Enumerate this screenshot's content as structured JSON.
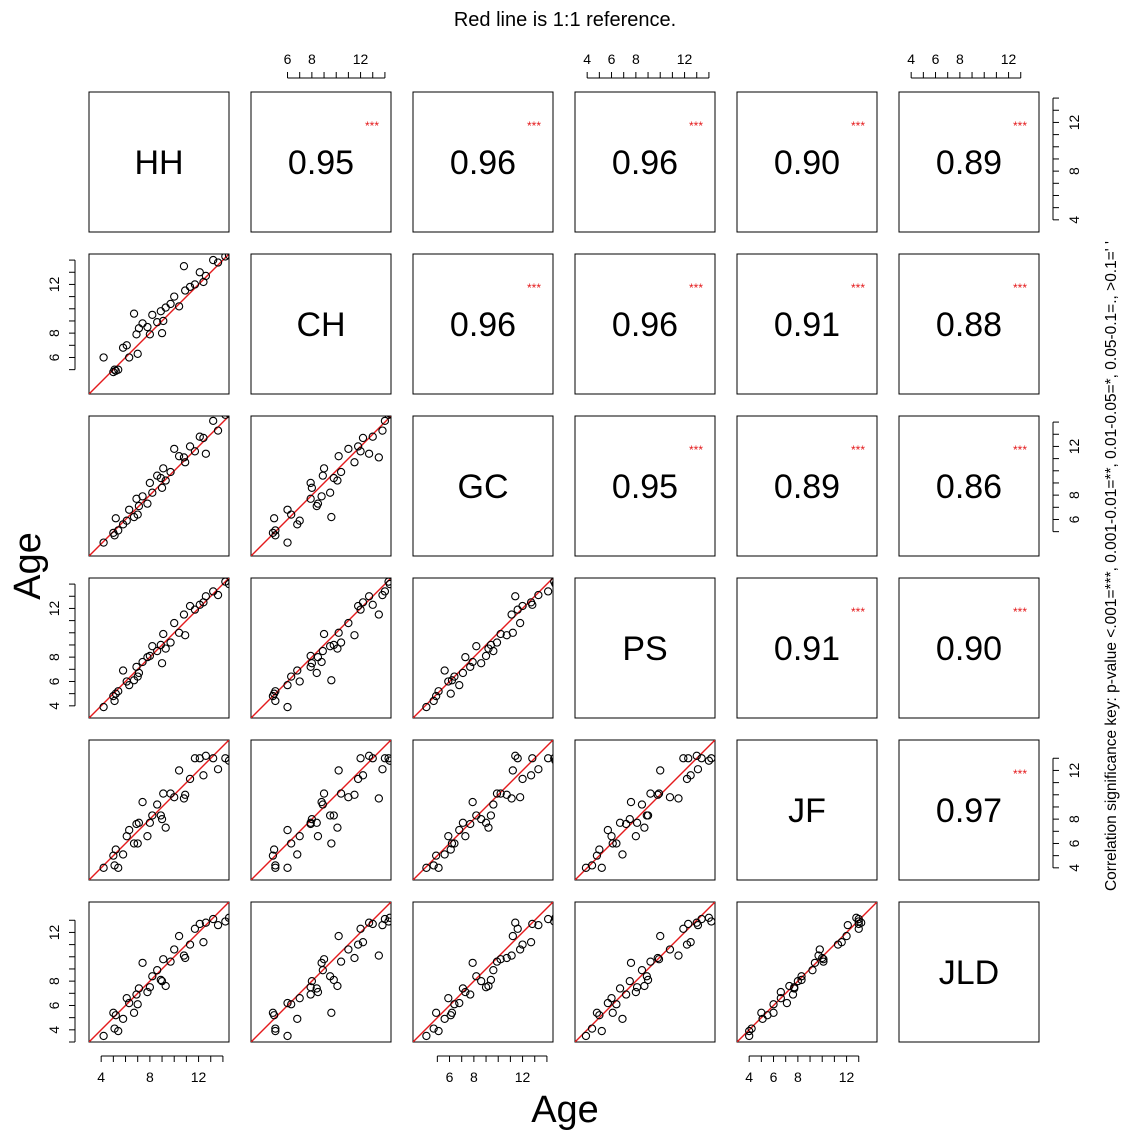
{
  "chart_data": {
    "type": "scatter",
    "title": "Red line is 1:1 reference.",
    "xlabel": "Age",
    "ylabel": "Age",
    "side_key": "Correlation significance key: p-value <.001=***, 0.001-0.01=**, 0.01-0.05=*, 0.05-0.1=., >0.1=' '",
    "reference_line": "1:1",
    "reference_line_color": "#e41a1c",
    "significance_color": "#e41a1c",
    "axis_range": [
      3,
      14.5
    ],
    "readers": [
      "HH",
      "CH",
      "GC",
      "PS",
      "JF",
      "JLD"
    ],
    "correlations": [
      {
        "row": 0,
        "col": 1,
        "value": "0.95",
        "sig": "***"
      },
      {
        "row": 0,
        "col": 2,
        "value": "0.96",
        "sig": "***"
      },
      {
        "row": 0,
        "col": 3,
        "value": "0.96",
        "sig": "***"
      },
      {
        "row": 0,
        "col": 4,
        "value": "0.90",
        "sig": "***"
      },
      {
        "row": 0,
        "col": 5,
        "value": "0.89",
        "sig": "***"
      },
      {
        "row": 1,
        "col": 2,
        "value": "0.96",
        "sig": "***"
      },
      {
        "row": 1,
        "col": 3,
        "value": "0.96",
        "sig": "***"
      },
      {
        "row": 1,
        "col": 4,
        "value": "0.91",
        "sig": "***"
      },
      {
        "row": 1,
        "col": 5,
        "value": "0.88",
        "sig": "***"
      },
      {
        "row": 2,
        "col": 3,
        "value": "0.95",
        "sig": "***"
      },
      {
        "row": 2,
        "col": 4,
        "value": "0.89",
        "sig": "***"
      },
      {
        "row": 2,
        "col": 5,
        "value": "0.86",
        "sig": "***"
      },
      {
        "row": 3,
        "col": 4,
        "value": "0.91",
        "sig": "***"
      },
      {
        "row": 3,
        "col": 5,
        "value": "0.90",
        "sig": "***"
      },
      {
        "row": 4,
        "col": 5,
        "value": "0.97",
        "sig": "***"
      }
    ],
    "axes": {
      "top": [
        {
          "col": 1,
          "ticks": [
            6,
            7,
            8,
            9,
            10,
            11,
            12,
            13,
            14
          ],
          "labels": [
            "6",
            "8",
            "12"
          ]
        },
        {
          "col": 3,
          "ticks": [
            4,
            5,
            6,
            7,
            8,
            9,
            10,
            11,
            12,
            13,
            14
          ],
          "labels": [
            "4",
            "6",
            "8",
            "12"
          ]
        },
        {
          "col": 5,
          "ticks": [
            4,
            5,
            6,
            7,
            8,
            9,
            10,
            11,
            12,
            13
          ],
          "labels": [
            "4",
            "6",
            "8",
            "12"
          ]
        }
      ],
      "right": [
        {
          "row": 0,
          "ticks": [
            4,
            5,
            6,
            7,
            8,
            9,
            10,
            11,
            12,
            13,
            14
          ],
          "labels": [
            "4",
            "8",
            "12"
          ]
        },
        {
          "row": 2,
          "ticks": [
            5,
            6,
            7,
            8,
            9,
            10,
            11,
            12,
            13,
            14
          ],
          "labels": [
            "6",
            "8",
            "12"
          ]
        },
        {
          "row": 4,
          "ticks": [
            4,
            5,
            6,
            7,
            8,
            9,
            10,
            11,
            12,
            13
          ],
          "labels": [
            "4",
            "6",
            "8",
            "12"
          ]
        }
      ],
      "left": [
        {
          "row": 1,
          "ticks": [
            5,
            6,
            7,
            8,
            9,
            10,
            11,
            12,
            13,
            14
          ],
          "labels": [
            "6",
            "8",
            "12"
          ]
        },
        {
          "row": 3,
          "ticks": [
            4,
            5,
            6,
            7,
            8,
            9,
            10,
            11,
            12,
            13,
            14
          ],
          "labels": [
            "4",
            "6",
            "8",
            "12"
          ]
        },
        {
          "row": 5,
          "ticks": [
            3,
            4,
            5,
            6,
            7,
            8,
            9,
            10,
            11,
            12,
            13
          ],
          "labels": [
            "4",
            "6",
            "8",
            "12"
          ]
        }
      ],
      "bottom": [
        {
          "col": 0,
          "ticks": [
            4,
            5,
            6,
            7,
            8,
            9,
            10,
            11,
            12,
            13,
            14
          ],
          "labels": [
            "4",
            "8",
            "12"
          ]
        },
        {
          "col": 2,
          "ticks": [
            5,
            6,
            7,
            8,
            9,
            10,
            11,
            12,
            13,
            14
          ],
          "labels": [
            "6",
            "8",
            "12"
          ]
        },
        {
          "col": 4,
          "ticks": [
            4,
            5,
            6,
            7,
            8,
            9,
            10,
            11,
            12,
            13
          ],
          "labels": [
            "4",
            "6",
            "8",
            "12"
          ]
        }
      ]
    },
    "ages": {
      "HH": [
        4.2,
        5.1,
        5.2,
        5.4,
        5.8,
        6.1,
        6.3,
        6.7,
        6.9,
        7.1,
        7.4,
        7.8,
        8.0,
        8.2,
        8.6,
        8.9,
        9.1,
        9.3,
        9.7,
        10.0,
        10.4,
        10.8,
        11.3,
        11.7,
        12.1,
        12.6,
        13.2,
        13.6,
        14.2,
        14.5,
        5.0,
        7.0,
        9.0,
        10.9,
        12.4
      ],
      "CH": [
        6.0,
        5.0,
        4.9,
        5.0,
        6.8,
        7.0,
        6.0,
        9.6,
        7.9,
        8.4,
        8.8,
        8.5,
        7.9,
        9.5,
        8.9,
        9.8,
        9.0,
        10.1,
        10.4,
        11.0,
        10.2,
        13.5,
        11.8,
        12.0,
        13.0,
        12.7,
        14.0,
        13.8,
        14.3,
        14.4,
        4.8,
        6.3,
        8.0,
        11.5,
        12.2
      ],
      "GC": [
        4.1,
        4.7,
        6.1,
        5.1,
        5.6,
        5.9,
        6.8,
        6.2,
        7.7,
        7.1,
        7.9,
        7.3,
        9.0,
        8.2,
        9.6,
        9.4,
        10.2,
        9.2,
        9.9,
        11.8,
        11.2,
        11.1,
        12.0,
        11.6,
        12.8,
        11.4,
        14.1,
        13.3,
        14.6,
        14.7,
        4.9,
        6.4,
        8.6,
        10.7,
        12.7
      ],
      "PS": [
        3.9,
        4.4,
        5.0,
        5.2,
        6.9,
        6.0,
        5.7,
        6.1,
        7.2,
        6.7,
        7.6,
        8.0,
        8.1,
        8.9,
        8.5,
        9.0,
        9.9,
        8.7,
        9.2,
        10.8,
        10.0,
        11.5,
        12.2,
        11.9,
        12.3,
        13.0,
        13.4,
        13.1,
        14.2,
        14.0,
        4.8,
        6.4,
        7.5,
        9.8,
        12.5
      ],
      "JF": [
        4.0,
        4.2,
        5.5,
        4.0,
        5.1,
        6.6,
        7.1,
        6.0,
        7.6,
        7.7,
        9.4,
        6.6,
        7.7,
        8.3,
        9.2,
        8.3,
        10.1,
        7.3,
        10.1,
        9.8,
        12.0,
        9.7,
        11.3,
        13.0,
        13.0,
        13.2,
        13.0,
        12.1,
        13.0,
        12.8,
        5.0,
        6.0,
        8.0,
        10.0,
        11.6
      ],
      "JLD": [
        3.5,
        4.1,
        5.2,
        3.9,
        4.9,
        6.6,
        6.2,
        5.4,
        6.9,
        7.4,
        9.5,
        7.1,
        7.5,
        8.4,
        8.9,
        8.1,
        9.8,
        7.6,
        9.6,
        10.6,
        11.7,
        10.1,
        11.0,
        12.3,
        12.7,
        12.8,
        13.1,
        12.6,
        12.9,
        13.2,
        5.4,
        6.1,
        8.0,
        9.9,
        11.2
      ]
    }
  }
}
